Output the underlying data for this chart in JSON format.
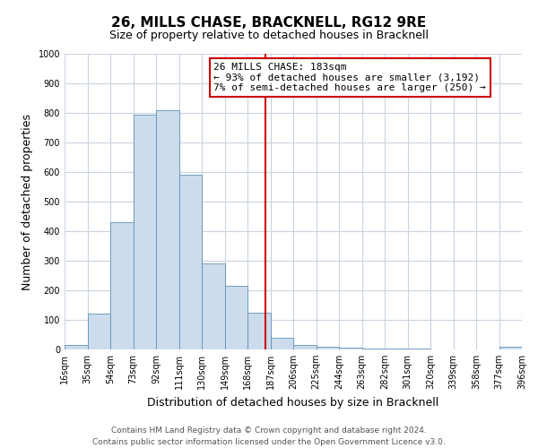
{
  "title": "26, MILLS CHASE, BRACKNELL, RG12 9RE",
  "subtitle": "Size of property relative to detached houses in Bracknell",
  "xlabel": "Distribution of detached houses by size in Bracknell",
  "ylabel": "Number of detached properties",
  "bin_edges": [
    16,
    35,
    54,
    73,
    92,
    111,
    130,
    149,
    168,
    187,
    206,
    225,
    244,
    263,
    282,
    301,
    320,
    339,
    358,
    377,
    396
  ],
  "bin_labels": [
    "16sqm",
    "35sqm",
    "54sqm",
    "73sqm",
    "92sqm",
    "111sqm",
    "130sqm",
    "149sqm",
    "168sqm",
    "187sqm",
    "206sqm",
    "225sqm",
    "244sqm",
    "263sqm",
    "282sqm",
    "301sqm",
    "320sqm",
    "339sqm",
    "358sqm",
    "377sqm",
    "396sqm"
  ],
  "bar_heights": [
    15,
    120,
    430,
    795,
    810,
    590,
    290,
    215,
    125,
    40,
    15,
    8,
    5,
    3,
    2,
    2,
    1,
    1,
    0,
    10
  ],
  "bar_color": "#ccdcec",
  "bar_edge_color": "#6090b8",
  "ylim": [
    0,
    1000
  ],
  "yticks": [
    0,
    100,
    200,
    300,
    400,
    500,
    600,
    700,
    800,
    900,
    1000
  ],
  "marker_value": 183,
  "marker_color": "#cc0000",
  "annotation_title": "26 MILLS CHASE: 183sqm",
  "annotation_line1": "← 93% of detached houses are smaller (3,192)",
  "annotation_line2": "7% of semi-detached houses are larger (250) →",
  "annotation_box_color": "#cc0000",
  "footer_line1": "Contains HM Land Registry data © Crown copyright and database right 2024.",
  "footer_line2": "Contains public sector information licensed under the Open Government Licence v3.0.",
  "background_color": "#ffffff",
  "grid_color": "#c8d4e0",
  "title_fontsize": 11,
  "subtitle_fontsize": 9,
  "axis_label_fontsize": 9,
  "tick_fontsize": 7,
  "annotation_fontsize": 8,
  "footer_fontsize": 6.5
}
